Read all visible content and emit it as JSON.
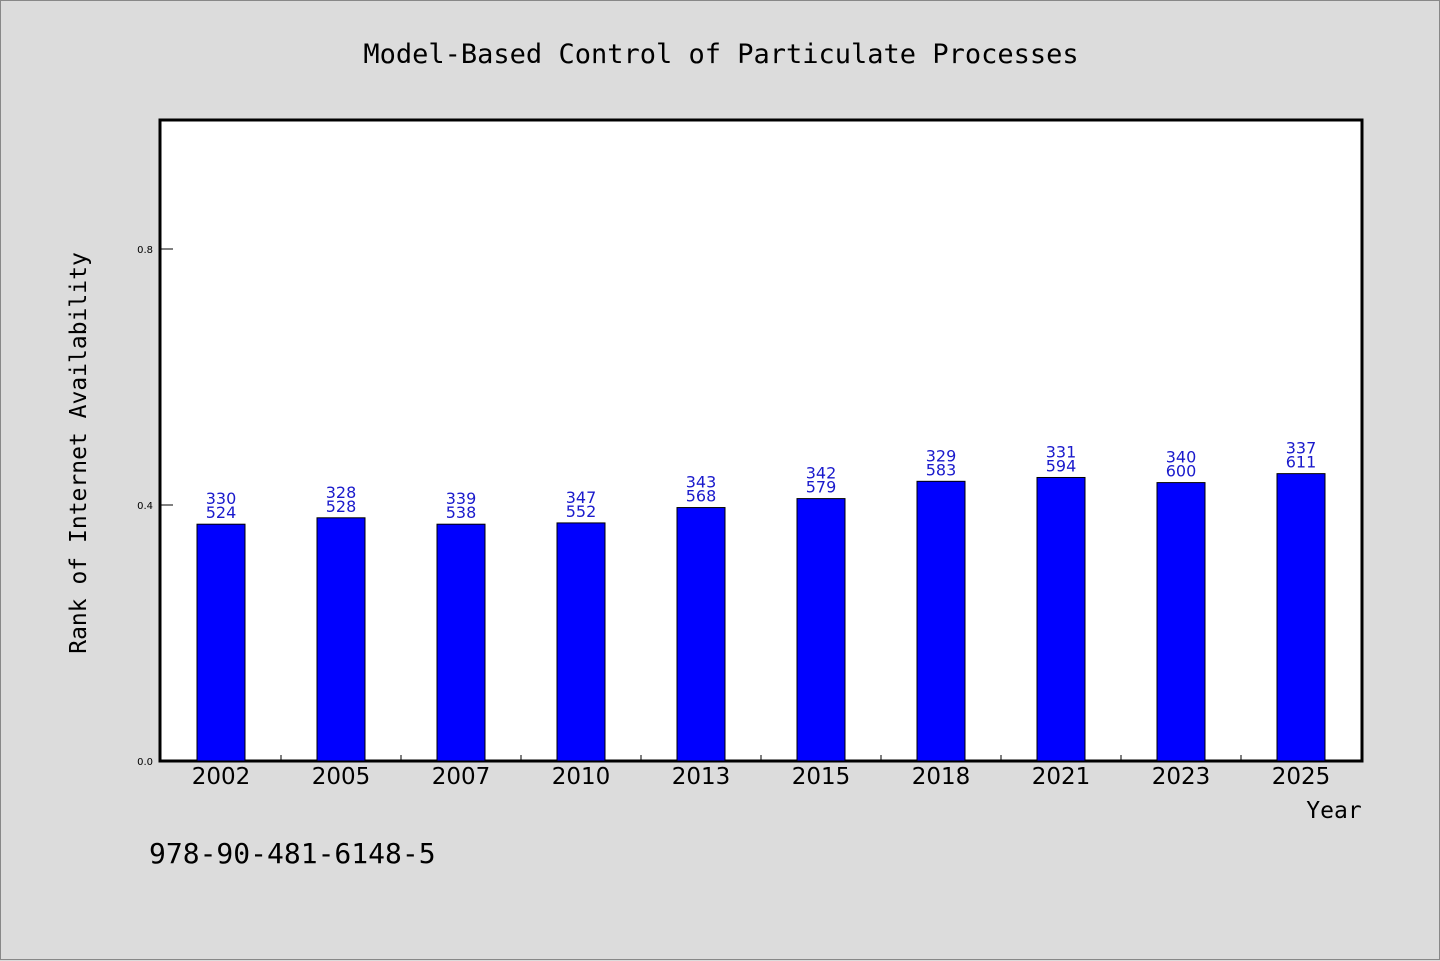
{
  "chart_data": {
    "type": "bar",
    "title": "Model-Based Control of Particulate Processes",
    "xlabel": "Year",
    "ylabel": "Rank of Internet Availability",
    "categories": [
      "2002",
      "2005",
      "2007",
      "2010",
      "2013",
      "2015",
      "2018",
      "2021",
      "2023",
      "2025"
    ],
    "values": [
      0.37,
      0.38,
      0.37,
      0.372,
      0.396,
      0.41,
      0.437,
      0.443,
      0.435,
      0.449
    ],
    "label_top": [
      "330",
      "328",
      "339",
      "347",
      "343",
      "342",
      "329",
      "331",
      "340",
      "337"
    ],
    "label_bottom": [
      "524",
      "528",
      "538",
      "552",
      "568",
      "579",
      "583",
      "594",
      "600",
      "611"
    ],
    "yticks": [
      "0.0",
      "0.4",
      "0.8"
    ],
    "ytick_values": [
      0.0,
      0.4,
      0.8
    ],
    "ylim": [
      0,
      1.0
    ],
    "grid": false,
    "bar_color": "#0000ff",
    "label_color": "#1a1acc"
  },
  "footer": {
    "isbn": "978-90-481-6148-5"
  }
}
